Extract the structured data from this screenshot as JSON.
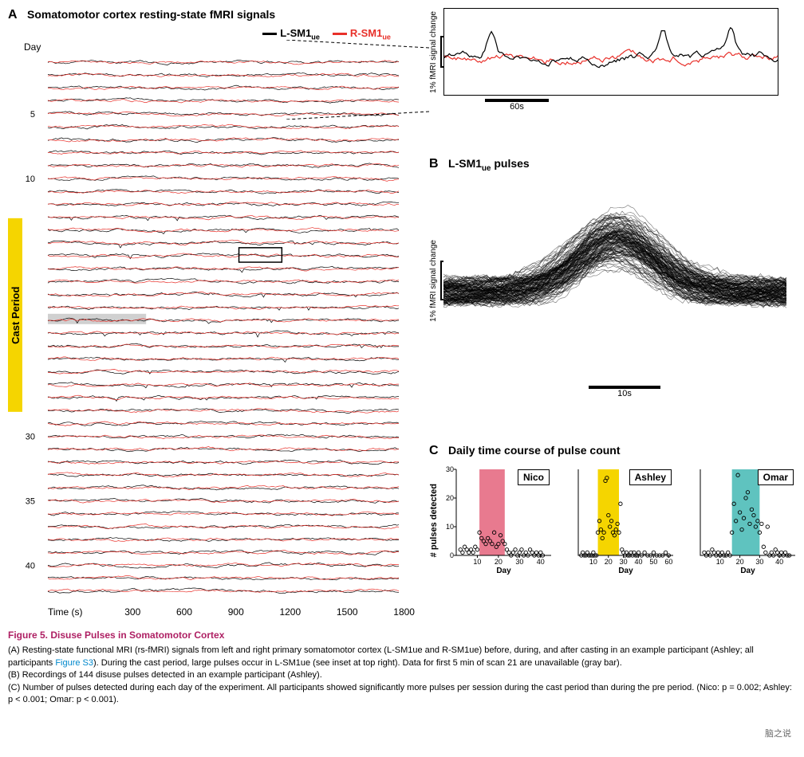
{
  "panelA": {
    "label": "A",
    "title": "Somatomotor cortex resting-state fMRI signals",
    "yLabel": "Day",
    "xLabel": "Time (s)",
    "yTicks": [
      5,
      10,
      30,
      35,
      40
    ],
    "xTicks": [
      300,
      600,
      900,
      1200,
      1500,
      1800
    ],
    "castPeriodLabel": "Cast Period",
    "castPeriodStartDay": 13,
    "castPeriodEndDay": 27,
    "nDays": 42,
    "legend": [
      {
        "label": "L-SM1",
        "sub": "ue",
        "color": "#000000"
      },
      {
        "label": "R-SM1",
        "sub": "ue",
        "color": "#e8302a"
      }
    ],
    "grayBarDay": 21,
    "highlightBox": {
      "day": 16,
      "xStart": 980,
      "xEnd": 1200
    },
    "traceColorL": "#000000",
    "traceColorR": "#e8302a",
    "gridColor": "#ffffff",
    "castColor": "#f5d500"
  },
  "panelInset": {
    "yLabel": "1% fMRI signal change",
    "xScaleLabel": "60s",
    "traceColorL": "#000000",
    "traceColorR": "#e8302a"
  },
  "panelB": {
    "label": "B",
    "title": "L-SM1",
    "titleSub": "ue",
    "titleSuffix": " pulses",
    "yLabel": "1% fMRI signal change",
    "xScaleLabel": "10s",
    "nPulses": 144,
    "traceColor": "#000000"
  },
  "panelC": {
    "label": "C",
    "title": "Daily time course of pulse count",
    "yLabel": "# pulses detected",
    "xLabel": "Day",
    "yTicks": [
      0,
      10,
      20,
      30
    ],
    "subjects": [
      {
        "name": "Nico",
        "color": "#e87a8f",
        "xTicks": [
          10,
          20,
          30,
          40
        ],
        "xMax": 45,
        "castStart": 11,
        "castEnd": 23,
        "points": [
          [
            2,
            2
          ],
          [
            3,
            1
          ],
          [
            4,
            3
          ],
          [
            5,
            2
          ],
          [
            6,
            1
          ],
          [
            7,
            2
          ],
          [
            8,
            1
          ],
          [
            9,
            3
          ],
          [
            10,
            2
          ],
          [
            11,
            8
          ],
          [
            12,
            6
          ],
          [
            13,
            5
          ],
          [
            14,
            4
          ],
          [
            15,
            6
          ],
          [
            16,
            5
          ],
          [
            17,
            4
          ],
          [
            18,
            8
          ],
          [
            19,
            3
          ],
          [
            20,
            4
          ],
          [
            21,
            7
          ],
          [
            22,
            5
          ],
          [
            23,
            4
          ],
          [
            24,
            2
          ],
          [
            25,
            1
          ],
          [
            26,
            0
          ],
          [
            27,
            1
          ],
          [
            28,
            2
          ],
          [
            29,
            0
          ],
          [
            30,
            1
          ],
          [
            31,
            2
          ],
          [
            32,
            0
          ],
          [
            33,
            1
          ],
          [
            34,
            0
          ],
          [
            35,
            2
          ],
          [
            36,
            1
          ],
          [
            37,
            0
          ],
          [
            38,
            1
          ],
          [
            39,
            0
          ],
          [
            40,
            1
          ],
          [
            41,
            0
          ]
        ]
      },
      {
        "name": "Ashley",
        "color": "#f5d500",
        "xTicks": [
          10,
          20,
          30,
          40,
          50,
          60
        ],
        "xMax": 63,
        "castStart": 13,
        "castEnd": 27,
        "points": [
          [
            2,
            0
          ],
          [
            3,
            1
          ],
          [
            4,
            0
          ],
          [
            5,
            0
          ],
          [
            6,
            1
          ],
          [
            7,
            0
          ],
          [
            8,
            0
          ],
          [
            9,
            0
          ],
          [
            10,
            1
          ],
          [
            11,
            0
          ],
          [
            12,
            0
          ],
          [
            13,
            8
          ],
          [
            14,
            12
          ],
          [
            15,
            9
          ],
          [
            16,
            6
          ],
          [
            17,
            8
          ],
          [
            18,
            26
          ],
          [
            19,
            27
          ],
          [
            20,
            14
          ],
          [
            21,
            10
          ],
          [
            22,
            12
          ],
          [
            23,
            8
          ],
          [
            24,
            7
          ],
          [
            25,
            9
          ],
          [
            26,
            11
          ],
          [
            27,
            8
          ],
          [
            28,
            18
          ],
          [
            29,
            2
          ],
          [
            30,
            1
          ],
          [
            31,
            0
          ],
          [
            32,
            1
          ],
          [
            33,
            0
          ],
          [
            34,
            0
          ],
          [
            35,
            1
          ],
          [
            36,
            0
          ],
          [
            37,
            1
          ],
          [
            38,
            0
          ],
          [
            39,
            0
          ],
          [
            40,
            1
          ],
          [
            42,
            0
          ],
          [
            44,
            1
          ],
          [
            46,
            0
          ],
          [
            48,
            0
          ],
          [
            50,
            1
          ],
          [
            52,
            0
          ],
          [
            54,
            0
          ],
          [
            56,
            0
          ],
          [
            58,
            1
          ],
          [
            60,
            0
          ]
        ]
      },
      {
        "name": "Omar",
        "color": "#5fc3bf",
        "xTicks": [
          10,
          20,
          30,
          40
        ],
        "xMax": 48,
        "castStart": 16,
        "castEnd": 30,
        "points": [
          [
            2,
            1
          ],
          [
            3,
            0
          ],
          [
            4,
            1
          ],
          [
            5,
            0
          ],
          [
            6,
            2
          ],
          [
            7,
            1
          ],
          [
            8,
            0
          ],
          [
            9,
            1
          ],
          [
            10,
            0
          ],
          [
            11,
            1
          ],
          [
            12,
            0
          ],
          [
            13,
            0
          ],
          [
            14,
            1
          ],
          [
            15,
            0
          ],
          [
            16,
            8
          ],
          [
            17,
            18
          ],
          [
            18,
            12
          ],
          [
            19,
            28
          ],
          [
            20,
            15
          ],
          [
            21,
            9
          ],
          [
            22,
            13
          ],
          [
            23,
            20
          ],
          [
            24,
            22
          ],
          [
            25,
            11
          ],
          [
            26,
            16
          ],
          [
            27,
            14
          ],
          [
            28,
            10
          ],
          [
            29,
            12
          ],
          [
            30,
            8
          ],
          [
            31,
            11
          ],
          [
            32,
            3
          ],
          [
            33,
            1
          ],
          [
            34,
            10
          ],
          [
            35,
            0
          ],
          [
            36,
            1
          ],
          [
            37,
            0
          ],
          [
            38,
            2
          ],
          [
            39,
            1
          ],
          [
            40,
            0
          ],
          [
            41,
            1
          ],
          [
            42,
            0
          ],
          [
            43,
            1
          ],
          [
            44,
            0
          ],
          [
            45,
            0
          ]
        ]
      }
    ]
  },
  "caption": {
    "title": "Figure 5. Disuse Pulses in Somatomotor Cortex",
    "partA": "(A) Resting-state functional MRI (rs-fMRI) signals from left and right primary somatomotor cortex (L-SM1ue and R-SM1ue) before, during, and after casting in an example participant (Ashley; all participants ",
    "partALink": "Figure S3",
    "partAEnd": "). During the cast period, large pulses occur in L-SM1ue (see inset at top right). Data for first 5 min of scan 21 are unavailable (gray bar).",
    "partB": "(B) Recordings of 144 disuse pulses detected in an example participant (Ashley).",
    "partC": "(C) Number of pulses detected during each day of the experiment. All participants showed significantly more pulses per session during the cast period than during the pre period. (Nico: p = 0.002; Ashley: p < 0.001; Omar: p < 0.001)."
  },
  "watermark": "脑之说"
}
